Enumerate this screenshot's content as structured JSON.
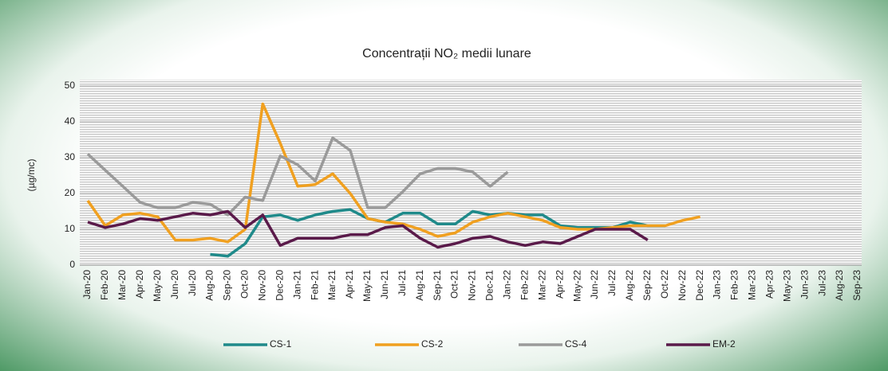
{
  "chart_data": {
    "type": "line",
    "title": "Concentrații NO₂ medii lunare",
    "y_label": "(µg/mc)",
    "categories": [
      "Jan-20",
      "Feb-20",
      "Mar-20",
      "Apr-20",
      "May-20",
      "Jun-20",
      "Jul-20",
      "Aug-20",
      "Sep-20",
      "Oct-20",
      "Nov-20",
      "Dec-20",
      "Jan-21",
      "Feb-21",
      "Mar-21",
      "Apr-21",
      "May-21",
      "Jun-21",
      "Jul-21",
      "Aug-21",
      "Sep-21",
      "Oct-21",
      "Nov-21",
      "Dec-21",
      "Jan-22",
      "Feb-22",
      "Mar-22",
      "Apr-22",
      "May-22",
      "Jun-22",
      "Jul-22",
      "Aug-22",
      "Sep-22",
      "Oct-22",
      "Nov-22",
      "Dec-22",
      "Jan-23",
      "Feb-23",
      "Mar-23",
      "Apr-23",
      "May-23",
      "Jun-23",
      "Jul-23",
      "Aug-23",
      "Sep-23"
    ],
    "series": [
      {
        "name": "CS-1",
        "color": "#1f8a8a",
        "values": [
          null,
          null,
          null,
          null,
          null,
          null,
          null,
          3,
          2.5,
          6,
          13.5,
          14,
          12.5,
          14,
          15,
          15.5,
          13,
          12,
          14.5,
          14.5,
          11.5,
          11.5,
          15,
          14,
          14.5,
          14,
          14,
          11,
          10.5,
          10.5,
          10.5,
          12,
          11,
          11,
          null,
          null,
          null,
          null,
          null,
          null,
          null,
          null,
          null,
          null,
          null
        ]
      },
      {
        "name": "CS-2",
        "color": "#f0a020",
        "values": [
          18,
          11,
          14,
          14.5,
          13.5,
          7,
          7,
          7.5,
          6.5,
          10,
          45,
          34,
          22,
          22.5,
          25.5,
          20,
          13,
          12,
          11.5,
          10,
          8,
          9,
          12,
          13.5,
          14.5,
          13.5,
          12.5,
          10.5,
          10,
          10,
          10.5,
          11,
          11,
          11,
          12.5,
          13.5,
          null,
          null,
          null,
          null,
          null,
          null,
          null,
          null,
          null
        ]
      },
      {
        "name": "CS-4",
        "color": "#9a9a9a",
        "values": [
          31,
          26.5,
          22,
          17.5,
          16,
          16,
          17.5,
          17,
          14,
          19,
          18,
          30.5,
          28,
          23.5,
          35.5,
          32,
          16,
          16,
          20.5,
          25.5,
          27,
          27,
          26,
          22,
          26,
          null,
          null,
          null,
          null,
          null,
          null,
          null,
          null,
          null,
          null,
          null,
          null,
          null,
          null,
          null,
          null,
          null,
          null,
          null,
          null
        ]
      },
      {
        "name": "EM-2",
        "color": "#5a1a4a",
        "values": [
          12,
          10.5,
          11.5,
          13,
          12.5,
          13.5,
          14.5,
          14,
          15,
          10.5,
          14,
          5.5,
          7.5,
          7.5,
          7.5,
          8.5,
          8.5,
          10.5,
          11,
          7.5,
          5,
          6,
          7.5,
          8,
          6.5,
          5.5,
          6.5,
          6,
          8,
          10,
          10,
          10,
          7,
          null,
          null,
          null,
          null,
          null,
          null,
          null,
          null,
          null,
          null,
          null,
          null
        ]
      }
    ],
    "ylim": [
      0,
      50
    ],
    "yticks": [
      0,
      10,
      20,
      30,
      40,
      50
    ],
    "grid": true,
    "legend": "bottom"
  }
}
